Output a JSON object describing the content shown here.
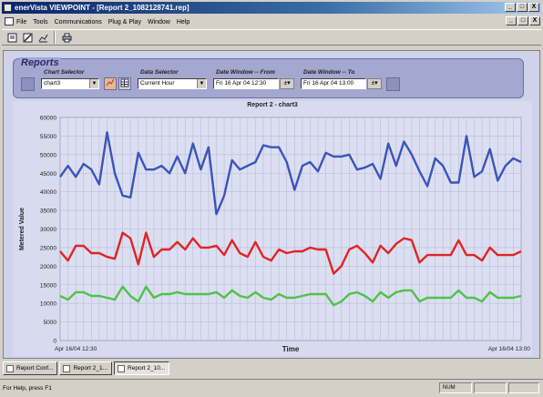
{
  "window": {
    "title": "enerVista VIEWPOINT - [Report 2_1082128741.rep]",
    "controls": [
      "_",
      "□",
      "X"
    ]
  },
  "menubar": {
    "items": [
      "File",
      "Tools",
      "Communications",
      "Plug & Play",
      "Window",
      "Help"
    ]
  },
  "mdi_controls": [
    "_",
    "□",
    "X"
  ],
  "toolbar": {
    "buttons": [
      "new-icon",
      "edit-icon",
      "chart-icon",
      "print-icon"
    ]
  },
  "reports": {
    "title": "Reports",
    "chart_selector_label": "Chart Selector",
    "chart_selector_value": "chart3",
    "data_selector_label": "Data Selector",
    "data_selector_value": "Current Hour",
    "from_label": "Date Window -- From",
    "from_value": "Fri 16 Apr 04 12:30",
    "to_label": "Date Window -- To",
    "to_value": "Fri 16 Apr 04 13:00"
  },
  "chart_data": {
    "type": "line",
    "title": "Report 2 - chart3",
    "xlabel": "Time",
    "ylabel": "Metered Value",
    "x_start_label": "Apr 16/04 12:30",
    "x_end_label": "Apr 16/04 13:00",
    "ylim": [
      0,
      60000
    ],
    "yticks": [
      0,
      5000,
      10000,
      15000,
      20000,
      25000,
      30000,
      35000,
      40000,
      45000,
      50000,
      55000,
      60000
    ],
    "grid": true,
    "colors": {
      "blue": "#3a55b8",
      "red": "#e02424",
      "green": "#4fc24a",
      "background": "#dcdff2",
      "grid": "#b8bcd8"
    },
    "series": [
      {
        "color": "blue",
        "values": [
          44000,
          47000,
          44000,
          47500,
          46000,
          42000,
          56000,
          45000,
          39000,
          38500,
          50500,
          46000,
          46000,
          47000,
          45000,
          49500,
          45000,
          53000,
          46000,
          52000,
          34000,
          39000,
          48500,
          46000,
          47000,
          48000,
          52500,
          52000,
          52000,
          48000,
          40500,
          47000,
          48000,
          45500,
          50500,
          49500,
          49500,
          50000,
          46000,
          46500,
          47500,
          43500,
          53000,
          47000,
          53500,
          50000,
          45500,
          41500,
          49000,
          47000,
          42500,
          42500,
          55000,
          44000,
          45500,
          51500,
          43000,
          47000,
          49000,
          48000
        ]
      },
      {
        "color": "red",
        "values": [
          24000,
          21500,
          25500,
          25500,
          23500,
          23500,
          22500,
          22000,
          29000,
          27500,
          20500,
          29000,
          22500,
          24500,
          24500,
          26500,
          24500,
          27500,
          25000,
          25000,
          25500,
          23000,
          27000,
          23500,
          22500,
          26500,
          22500,
          21500,
          24500,
          23500,
          24000,
          24000,
          25000,
          24500,
          24500,
          18000,
          20000,
          24500,
          25500,
          23500,
          21000,
          25500,
          23500,
          26000,
          27500,
          27000,
          21000,
          23000,
          23000,
          23000,
          23000,
          27000,
          23000,
          23000,
          21500,
          25000,
          23000,
          23000,
          23000,
          24000
        ]
      },
      {
        "color": "green",
        "values": [
          12000,
          11000,
          13000,
          13000,
          12000,
          12000,
          11500,
          11000,
          14500,
          12000,
          10500,
          14500,
          11500,
          12500,
          12500,
          13000,
          12500,
          12500,
          12500,
          12500,
          13000,
          11500,
          13500,
          12000,
          11500,
          13000,
          11500,
          11000,
          12500,
          11500,
          11500,
          12000,
          12500,
          12500,
          12500,
          9500,
          10500,
          12500,
          13000,
          12000,
          10500,
          13000,
          11500,
          13000,
          13500,
          13500,
          10500,
          11500,
          11500,
          11500,
          11500,
          13500,
          11500,
          11500,
          10500,
          13000,
          11500,
          11500,
          11500,
          12000
        ]
      }
    ]
  },
  "tabs": [
    {
      "label": "Report Conf..."
    },
    {
      "label": "Report 2_1..."
    },
    {
      "label": "Report 2_10..."
    }
  ],
  "status": {
    "help_text": "For Help, press F1",
    "num": "NUM"
  }
}
